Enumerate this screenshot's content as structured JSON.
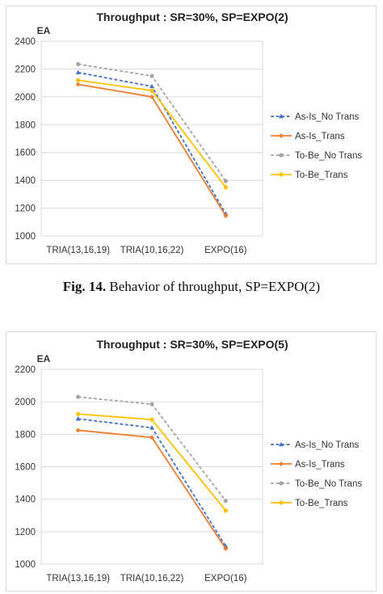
{
  "figure_caption": {
    "label": "Fig. 14.",
    "text": " Behavior of throughput, SP=EXPO(2)"
  },
  "chart_data": [
    {
      "type": "line",
      "title": "Throughput : SR=30%, SP=EXPO(2)",
      "ylabel": "EA",
      "xlabel": "",
      "categories": [
        "TRIA(13,16,19)",
        "TRIA(10,16,22)",
        "EXPO(16)"
      ],
      "ylim": [
        1000,
        2400
      ],
      "yticks": [
        "1000",
        "1200",
        "1400",
        "1600",
        "1800",
        "2000",
        "2200",
        "2400"
      ],
      "grid": true,
      "legend_position": "right",
      "series": [
        {
          "name": "As-Is_No Trans",
          "values": [
            2175,
            2075,
            1160
          ],
          "color": "#4472c4",
          "dash": true,
          "marker": "triangle"
        },
        {
          "name": "As-Is_Trans",
          "values": [
            2090,
            2000,
            1145
          ],
          "color": "#ed7d31",
          "dash": false,
          "marker": "diamond"
        },
        {
          "name": "To-Be_No Trans",
          "values": [
            2235,
            2150,
            1395
          ],
          "color": "#a5a5a5",
          "dash": true,
          "marker": "circle"
        },
        {
          "name": "To-Be_Trans",
          "values": [
            2120,
            2045,
            1350
          ],
          "color": "#ffc000",
          "dash": false,
          "marker": "circle"
        }
      ]
    },
    {
      "type": "line",
      "title": "Throughput : SR=30%, SP=EXPO(5)",
      "ylabel": "EA",
      "xlabel": "",
      "categories": [
        "TRIA(13,16,19)",
        "TRIA(10,16,22)",
        "EXPO(16)"
      ],
      "ylim": [
        1000,
        2200
      ],
      "yticks": [
        "1000",
        "1200",
        "1400",
        "1600",
        "1800",
        "2000",
        "2200"
      ],
      "grid": true,
      "legend_position": "right",
      "series": [
        {
          "name": "As-Is_No Trans",
          "values": [
            1895,
            1840,
            1110
          ],
          "color": "#4472c4",
          "dash": true,
          "marker": "triangle"
        },
        {
          "name": "As-Is_Trans",
          "values": [
            1825,
            1780,
            1095
          ],
          "color": "#ed7d31",
          "dash": false,
          "marker": "diamond"
        },
        {
          "name": "To-Be_No Trans",
          "values": [
            2030,
            1985,
            1390
          ],
          "color": "#a5a5a5",
          "dash": true,
          "marker": "circle"
        },
        {
          "name": "To-Be_Trans",
          "values": [
            1925,
            1890,
            1330
          ],
          "color": "#ffc000",
          "dash": false,
          "marker": "circle"
        }
      ]
    }
  ]
}
